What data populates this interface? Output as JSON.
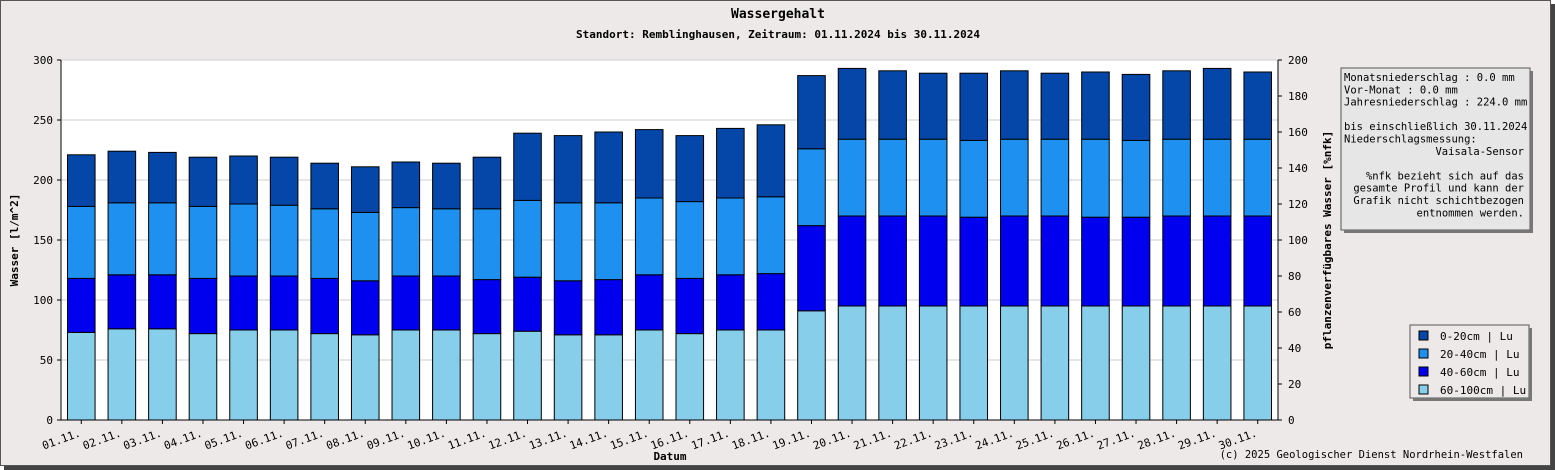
{
  "chart_data": {
    "type": "bar",
    "stacked": true,
    "title": "Wassergehalt",
    "subtitle": "Standort: Remblinghausen, Zeitraum: 01.11.2024 bis 30.11.2024",
    "xlabel": "Datum",
    "ylabel": "Wasser [l/m^2]",
    "y2label": "pflanzenverfügbares Wasser [%nfk]",
    "ylim": [
      0,
      300
    ],
    "y2lim": [
      0,
      200
    ],
    "yticks": [
      0,
      50,
      100,
      150,
      200,
      250,
      300
    ],
    "y2ticks": [
      0,
      20,
      40,
      60,
      80,
      100,
      120,
      140,
      160,
      180,
      200
    ],
    "grid": true,
    "legend_position": "bottom-right",
    "categories": [
      "01.11.",
      "02.11.",
      "03.11.",
      "04.11.",
      "05.11.",
      "06.11.",
      "07.11.",
      "08.11.",
      "09.11.",
      "10.11.",
      "11.11.",
      "12.11.",
      "13.11.",
      "14.11.",
      "15.11.",
      "16.11.",
      "17.11.",
      "18.11.",
      "19.11.",
      "20.11.",
      "21.11.",
      "22.11.",
      "23.11.",
      "24.11.",
      "25.11.",
      "26.11.",
      "27.11.",
      "28.11.",
      "29.11.",
      "30.11."
    ],
    "series": [
      {
        "name": "60-100cm | Lu",
        "color": "#87ceeb",
        "values": [
          73,
          76,
          76,
          72,
          75,
          75,
          72,
          71,
          75,
          75,
          72,
          74,
          71,
          71,
          75,
          72,
          75,
          75,
          91,
          95,
          95,
          95,
          95,
          95,
          95,
          95,
          95,
          95,
          95,
          95
        ]
      },
      {
        "name": "40-60cm | Lu",
        "color": "#0000ee",
        "values": [
          45,
          45,
          45,
          46,
          45,
          45,
          46,
          45,
          45,
          45,
          45,
          45,
          45,
          46,
          46,
          46,
          46,
          47,
          71,
          75,
          75,
          75,
          74,
          75,
          75,
          74,
          74,
          75,
          75,
          75
        ]
      },
      {
        "name": "20-40cm | Lu",
        "color": "#1e90f0",
        "values": [
          60,
          60,
          60,
          60,
          60,
          59,
          58,
          57,
          57,
          56,
          59,
          64,
          65,
          64,
          64,
          64,
          64,
          64,
          64,
          64,
          64,
          64,
          64,
          64,
          64,
          65,
          64,
          64,
          64,
          64
        ]
      },
      {
        "name": "0-20cm | Lu",
        "color": "#0447a8",
        "values": [
          43,
          43,
          42,
          41,
          40,
          40,
          38,
          38,
          38,
          38,
          43,
          56,
          56,
          59,
          57,
          55,
          58,
          60,
          61,
          59,
          57,
          55,
          56,
          57,
          55,
          56,
          55,
          57,
          59,
          56
        ]
      }
    ]
  },
  "info": {
    "lines": [
      "Monatsniederschlag :    0.0 mm",
      "Vor-Monat          :    0.0 mm",
      "Jahresniederschlag :  224.0 mm",
      "",
      "bis einschließlich 30.11.2024",
      "Niederschlagsmessung:",
      "Vaisala-Sensor",
      "",
      "%nfk bezieht sich auf das",
      "gesamte Profil und kann der",
      "Grafik nicht schichtbezogen",
      "entnommen werden."
    ]
  },
  "legend_items": [
    "0-20cm | Lu",
    "20-40cm | Lu",
    "40-60cm | Lu",
    "60-100cm | Lu"
  ],
  "footer": "(c) 2025 Geologischer Dienst Nordrhein-Westfalen"
}
